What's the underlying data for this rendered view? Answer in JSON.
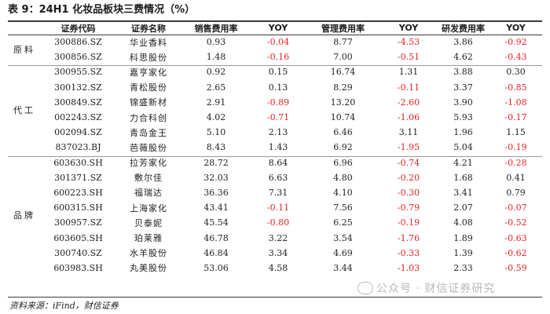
{
  "title": "表 9：24H1 化妆品板块三费情况（%）",
  "columns": [
    "证券代码",
    "证券名称",
    "销售费用率",
    "YOY",
    "管理费用率",
    "YOY",
    "研发费用率",
    "YOY"
  ],
  "groups": [
    {
      "category": "原料",
      "rows": [
        {
          "code": "300886.SZ",
          "name": "华业香料",
          "sales": "0.93",
          "sales_yoy": "-0.04",
          "admin": "8.77",
          "admin_yoy": "-4.53",
          "rd": "3.86",
          "rd_yoy": "-0.92"
        },
        {
          "code": "300856.SZ",
          "name": "科思股份",
          "sales": "1.48",
          "sales_yoy": "-0.16",
          "admin": "7.00",
          "admin_yoy": "-0.51",
          "rd": "4.62",
          "rd_yoy": "-0.43"
        }
      ]
    },
    {
      "category": "代工",
      "rows": [
        {
          "code": "300955.SZ",
          "name": "嘉亨家化",
          "sales": "0.92",
          "sales_yoy": "0.15",
          "admin": "16.74",
          "admin_yoy": "1.31",
          "rd": "3.88",
          "rd_yoy": "0.30"
        },
        {
          "code": "300132.SZ",
          "name": "青松股份",
          "sales": "2.65",
          "sales_yoy": "0.13",
          "admin": "8.29",
          "admin_yoy": "-0.11",
          "rd": "3.37",
          "rd_yoy": "-0.85"
        },
        {
          "code": "300849.SZ",
          "name": "锦盛新材",
          "sales": "2.91",
          "sales_yoy": "-0.89",
          "admin": "13.20",
          "admin_yoy": "-2.60",
          "rd": "3.90",
          "rd_yoy": "-1.08"
        },
        {
          "code": "002243.SZ",
          "name": "力合科创",
          "sales": "4.02",
          "sales_yoy": "-0.71",
          "admin": "10.74",
          "admin_yoy": "-1.06",
          "rd": "5.93",
          "rd_yoy": "-0.17"
        },
        {
          "code": "002094.SZ",
          "name": "青岛金王",
          "sales": "5.10",
          "sales_yoy": "2.13",
          "admin": "6.46",
          "admin_yoy": "3.11",
          "rd": "1.96",
          "rd_yoy": "1.15"
        },
        {
          "code": "837023.BJ",
          "name": "芭薇股份",
          "sales": "8.43",
          "sales_yoy": "1.43",
          "admin": "6.92",
          "admin_yoy": "-1.95",
          "rd": "5.04",
          "rd_yoy": "-0.19"
        }
      ]
    },
    {
      "category": "品牌",
      "rows": [
        {
          "code": "603630.SH",
          "name": "拉芳家化",
          "sales": "28.72",
          "sales_yoy": "8.64",
          "admin": "6.96",
          "admin_yoy": "-0.74",
          "rd": "4.21",
          "rd_yoy": "-0.28"
        },
        {
          "code": "301371.SZ",
          "name": "敷尔佳",
          "sales": "32.03",
          "sales_yoy": "6.63",
          "admin": "4.80",
          "admin_yoy": "-0.20",
          "rd": "1.68",
          "rd_yoy": "0.41"
        },
        {
          "code": "600223.SH",
          "name": "福瑞达",
          "sales": "36.36",
          "sales_yoy": "7.31",
          "admin": "4.10",
          "admin_yoy": "-0.30",
          "rd": "3.41",
          "rd_yoy": "0.79"
        },
        {
          "code": "600315.SH",
          "name": "上海家化",
          "sales": "43.41",
          "sales_yoy": "-0.11",
          "admin": "7.56",
          "admin_yoy": "-0.79",
          "rd": "2.07",
          "rd_yoy": "-0.07"
        },
        {
          "code": "300957.SZ",
          "name": "贝泰妮",
          "sales": "45.54",
          "sales_yoy": "-0.80",
          "admin": "6.25",
          "admin_yoy": "-0.19",
          "rd": "4.08",
          "rd_yoy": "-0.52"
        },
        {
          "code": "603605.SH",
          "name": "珀莱雅",
          "sales": "46.78",
          "sales_yoy": "3.22",
          "admin": "3.54",
          "admin_yoy": "-1.76",
          "rd": "1.89",
          "rd_yoy": "-0.63"
        },
        {
          "code": "300740.SZ",
          "name": "水羊股份",
          "sales": "46.84",
          "sales_yoy": "3.34",
          "admin": "4.69",
          "admin_yoy": "-0.33",
          "rd": "1.39",
          "rd_yoy": "-0.62"
        },
        {
          "code": "603983.SH",
          "name": "丸美股份",
          "sales": "53.06",
          "sales_yoy": "4.58",
          "admin": "3.44",
          "admin_yoy": "-1.03",
          "rd": "2.33",
          "rd_yoy": "-0.59"
        }
      ]
    }
  ],
  "source": "资料来源：iFind，财信证券",
  "watermark": "公众号 · 财信证券研究",
  "colors": {
    "negative": "#e32222",
    "text": "#222222",
    "rule": "#3a3a3a"
  }
}
